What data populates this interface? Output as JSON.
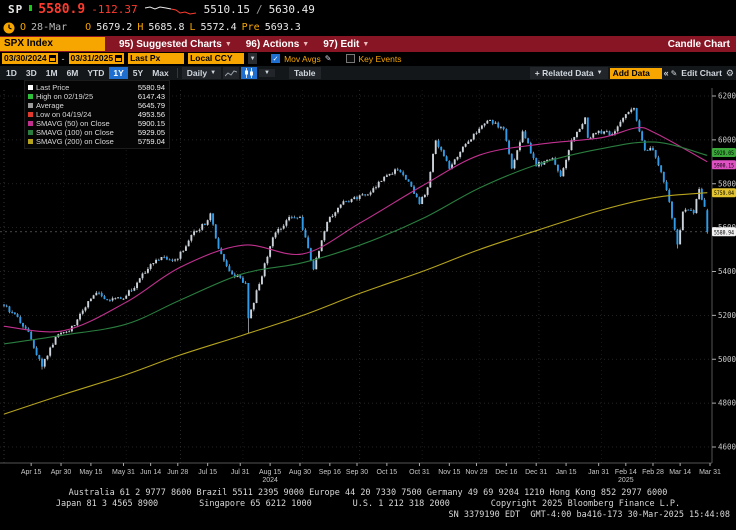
{
  "header": {
    "ticker": "SP",
    "last": "5580.9",
    "change": "-112.37",
    "range_low": "5510.15",
    "range_sep": "/",
    "range_high": "5630.49",
    "sparkline": {
      "white": [
        [
          1,
          4
        ],
        [
          6,
          3
        ],
        [
          11,
          5
        ],
        [
          16,
          3
        ],
        [
          22,
          4
        ],
        [
          27,
          5
        ]
      ],
      "red": [
        [
          27,
          5
        ],
        [
          32,
          6
        ],
        [
          36,
          9
        ],
        [
          41,
          8
        ],
        [
          46,
          10
        ],
        [
          52,
          9
        ]
      ]
    },
    "session": {
      "flag": "O",
      "date": "28-Mar",
      "o_label": "O",
      "o": "5679.2",
      "h_label": "H",
      "h": "5685.8",
      "l_label": "L",
      "l": "5572.4",
      "pre_label": "Pre",
      "pre": "5693.3"
    }
  },
  "menubar": {
    "security": "SPX Index",
    "items": [
      {
        "label": "95) Suggested Charts"
      },
      {
        "label": "96) Actions"
      },
      {
        "label": "97) Edit"
      }
    ],
    "right_label": "Candle Chart"
  },
  "controls": {
    "date_from": "03/30/2024",
    "date_to": "03/31/2025",
    "price_field": "Last Px",
    "currency": "Local CCY",
    "mov_avgs_label": "Mov Avgs",
    "key_events_label": "Key Events"
  },
  "toolbar": {
    "periods": [
      "1D",
      "3D",
      "1M",
      "6M",
      "YTD",
      "1Y",
      "5Y",
      "Max"
    ],
    "active_period": "1Y",
    "frequency": "Daily",
    "table_label": "Table",
    "related_data_label": "+ Related Data",
    "add_data_value": "Add Data",
    "collapse_label": "«",
    "edit_chart_label": "Edit Chart"
  },
  "legend": {
    "rows": [
      {
        "marker": "#ffffff",
        "label": "Last Price",
        "value": "5580.94"
      },
      {
        "marker": "#2fbf3a",
        "label": "High on 02/19/25",
        "value": "6147.43"
      },
      {
        "marker": "#9a9a9a",
        "label": "Average",
        "value": "5645.79"
      },
      {
        "marker": "#e03a2f",
        "label": "Low on 04/19/24",
        "value": "4953.56"
      },
      {
        "marker": "#c0318f",
        "label": "SMAVG (50)  on Close",
        "value": "5900.15"
      },
      {
        "marker": "#2a7d3f",
        "label": "SMAVG (100)  on Close",
        "value": "5929.05"
      },
      {
        "marker": "#b5a31e",
        "label": "SMAVG (200)  on Close",
        "value": "5759.04"
      }
    ]
  },
  "colors": {
    "up_candle": "#ccd3da",
    "down_candle": "#2f9ceb",
    "wick": "#bfc6cd",
    "sma50": "#c0318f",
    "sma100": "#2a7d3f",
    "sma200": "#b5a31e",
    "sma50_tag": "#e052c4",
    "sma100_tag": "#3aa93a",
    "sma200_tag": "#e3c42e",
    "last_tag": "#f2f2f2",
    "amber": "#f7a600",
    "blue": "#1f6fd0",
    "bar_red": "#871523",
    "down_red": "#ff3b2f",
    "grid": "#333333",
    "axis_text": "#c8c8c8"
  },
  "chart_data": {
    "type": "candlestick",
    "security": "SPX Index",
    "period": "1Y",
    "frequency": "Daily",
    "ylim": [
      4600,
      6200
    ],
    "y_ticks": [
      6200,
      6000,
      5800,
      5600,
      5400,
      5200,
      5000,
      4800,
      4600
    ],
    "x_ticks": [
      {
        "label": "Apr 15",
        "date": "2024-04-15"
      },
      {
        "label": "Apr 30",
        "date": "2024-04-30"
      },
      {
        "label": "May 15",
        "date": "2024-05-15"
      },
      {
        "label": "May 31",
        "date": "2024-05-31"
      },
      {
        "label": "Jun 14",
        "date": "2024-06-14"
      },
      {
        "label": "Jun 28",
        "date": "2024-06-28"
      },
      {
        "label": "Jul 15",
        "date": "2024-07-15"
      },
      {
        "label": "Jul 31",
        "date": "2024-07-31"
      },
      {
        "label": "Aug 15",
        "date": "2024-08-15",
        "year": "2024"
      },
      {
        "label": "Aug 30",
        "date": "2024-08-30"
      },
      {
        "label": "Sep 16",
        "date": "2024-09-16"
      },
      {
        "label": "Sep 30",
        "date": "2024-09-30"
      },
      {
        "label": "Oct 15",
        "date": "2024-10-15"
      },
      {
        "label": "Oct 31",
        "date": "2024-10-31"
      },
      {
        "label": "Nov 15",
        "date": "2024-11-15"
      },
      {
        "label": "Nov 29",
        "date": "2024-11-29"
      },
      {
        "label": "Dec 16",
        "date": "2024-12-16"
      },
      {
        "label": "Dec 31",
        "date": "2024-12-31"
      },
      {
        "label": "Jan 15",
        "date": "2025-01-15"
      },
      {
        "label": "Jan 31",
        "date": "2025-01-31"
      },
      {
        "label": "Feb 14",
        "date": "2025-02-14",
        "year": "2025"
      },
      {
        "label": "Feb 28",
        "date": "2025-02-28"
      },
      {
        "label": "Mar 14",
        "date": "2025-03-14"
      },
      {
        "label": "Mar 31",
        "date": "2025-03-31"
      }
    ],
    "key_points": {
      "last_price": 5580.94,
      "high": {
        "date": "2025-02-19",
        "value": 6147.43
      },
      "low": {
        "date": "2024-04-19",
        "value": 4953.56
      },
      "average": 5645.79
    },
    "last_candle": {
      "date": "2025-03-28",
      "open": 5679.2,
      "high": 5685.8,
      "low": 5572.4,
      "close": 5580.94
    },
    "forced_extremes": [
      {
        "date": "2024-04-19",
        "low": 4953.56
      },
      {
        "date": "2024-08-05",
        "low": 5119.26
      },
      {
        "date": "2025-02-19",
        "high": 6147.43
      },
      {
        "date": "2025-03-13",
        "low": 5504.65
      }
    ],
    "price_anchors": [
      [
        "2024-04-01",
        5244
      ],
      [
        "2024-04-05",
        5204
      ],
      [
        "2024-04-12",
        5123
      ],
      [
        "2024-04-19",
        4967
      ],
      [
        "2024-04-26",
        5100
      ],
      [
        "2024-05-03",
        5128
      ],
      [
        "2024-05-10",
        5223
      ],
      [
        "2024-05-17",
        5303
      ],
      [
        "2024-05-23",
        5268
      ],
      [
        "2024-05-31",
        5278
      ],
      [
        "2024-06-07",
        5347
      ],
      [
        "2024-06-14",
        5432
      ],
      [
        "2024-06-21",
        5465
      ],
      [
        "2024-06-28",
        5460
      ],
      [
        "2024-07-05",
        5567
      ],
      [
        "2024-07-12",
        5615
      ],
      [
        "2024-07-16",
        5667
      ],
      [
        "2024-07-19",
        5505
      ],
      [
        "2024-07-25",
        5399
      ],
      [
        "2024-08-02",
        5346
      ],
      [
        "2024-08-05",
        5186
      ],
      [
        "2024-08-09",
        5344
      ],
      [
        "2024-08-16",
        5554
      ],
      [
        "2024-08-23",
        5635
      ],
      [
        "2024-08-30",
        5648
      ],
      [
        "2024-09-06",
        5408
      ],
      [
        "2024-09-13",
        5626
      ],
      [
        "2024-09-20",
        5703
      ],
      [
        "2024-09-27",
        5738
      ],
      [
        "2024-10-04",
        5751
      ],
      [
        "2024-10-11",
        5815
      ],
      [
        "2024-10-18",
        5865
      ],
      [
        "2024-10-25",
        5808
      ],
      [
        "2024-10-31",
        5705
      ],
      [
        "2024-11-05",
        5783
      ],
      [
        "2024-11-08",
        5996
      ],
      [
        "2024-11-15",
        5871
      ],
      [
        "2024-11-22",
        5969
      ],
      [
        "2024-11-29",
        6032
      ],
      [
        "2024-12-06",
        6090
      ],
      [
        "2024-12-13",
        6051
      ],
      [
        "2024-12-18",
        5872
      ],
      [
        "2024-12-24",
        6040
      ],
      [
        "2024-12-31",
        5882
      ],
      [
        "2025-01-08",
        5918
      ],
      [
        "2025-01-13",
        5836
      ],
      [
        "2025-01-17",
        5997
      ],
      [
        "2025-01-24",
        6101
      ],
      [
        "2025-01-27",
        6012
      ],
      [
        "2025-01-31",
        6041
      ],
      [
        "2025-02-07",
        6026
      ],
      [
        "2025-02-14",
        6115
      ],
      [
        "2025-02-19",
        6144
      ],
      [
        "2025-02-25",
        5955
      ],
      [
        "2025-02-28",
        5955
      ],
      [
        "2025-03-07",
        5770
      ],
      [
        "2025-03-13",
        5521
      ],
      [
        "2025-03-17",
        5675
      ],
      [
        "2025-03-21",
        5668
      ],
      [
        "2025-03-25",
        5777
      ],
      [
        "2025-03-27",
        5693
      ],
      [
        "2025-03-28",
        5581
      ]
    ],
    "moving_averages": [
      {
        "name": "SMAVG (50) on Close",
        "color_key": "sma50",
        "last_value": 5900.15,
        "anchors": [
          [
            "2024-04-01",
            5150
          ],
          [
            "2024-05-01",
            5130
          ],
          [
            "2024-06-01",
            5260
          ],
          [
            "2024-07-01",
            5420
          ],
          [
            "2024-08-01",
            5520
          ],
          [
            "2024-09-01",
            5480
          ],
          [
            "2024-10-01",
            5620
          ],
          [
            "2024-11-01",
            5790
          ],
          [
            "2024-12-01",
            5930
          ],
          [
            "2025-01-01",
            5980
          ],
          [
            "2025-02-01",
            6010
          ],
          [
            "2025-02-20",
            6055
          ],
          [
            "2025-03-01",
            6030
          ],
          [
            "2025-03-28",
            5900.15
          ]
        ]
      },
      {
        "name": "SMAVG (100) on Close",
        "color_key": "sma100",
        "last_value": 5929.05,
        "anchors": [
          [
            "2024-04-01",
            5070
          ],
          [
            "2024-05-01",
            5110
          ],
          [
            "2024-06-01",
            5160
          ],
          [
            "2024-07-01",
            5270
          ],
          [
            "2024-08-01",
            5390
          ],
          [
            "2024-09-01",
            5440
          ],
          [
            "2024-10-01",
            5520
          ],
          [
            "2024-11-01",
            5640
          ],
          [
            "2024-12-01",
            5780
          ],
          [
            "2025-01-01",
            5890
          ],
          [
            "2025-02-01",
            5960
          ],
          [
            "2025-03-01",
            5990
          ],
          [
            "2025-03-28",
            5929.05
          ]
        ]
      },
      {
        "name": "SMAVG (200) on Close",
        "color_key": "sma200",
        "last_value": 5759.04,
        "anchors": [
          [
            "2024-04-01",
            4750
          ],
          [
            "2024-05-01",
            4840
          ],
          [
            "2024-06-01",
            4930
          ],
          [
            "2024-07-01",
            5020
          ],
          [
            "2024-08-01",
            5110
          ],
          [
            "2024-09-01",
            5200
          ],
          [
            "2024-10-01",
            5300
          ],
          [
            "2024-11-01",
            5400
          ],
          [
            "2024-12-01",
            5500
          ],
          [
            "2025-01-01",
            5590
          ],
          [
            "2025-02-01",
            5680
          ],
          [
            "2025-03-01",
            5738
          ],
          [
            "2025-03-28",
            5759.04
          ]
        ]
      }
    ],
    "price_tags": [
      {
        "value": "5929.05",
        "price": 5929.05,
        "color_key": "sma100_tag",
        "nudge": -3
      },
      {
        "value": "5900.15",
        "price": 5900.15,
        "color_key": "sma50_tag",
        "nudge": 3
      },
      {
        "value": "5759.04",
        "price": 5759.04,
        "color_key": "sma200_tag",
        "nudge": 0
      },
      {
        "value": "5580.94",
        "price": 5580.94,
        "color_key": "last_tag",
        "nudge": 0
      }
    ]
  },
  "footer": {
    "line1": "Australia 61 2 9777 8600 Brazil 5511 2395 9000 Europe 44 20 7330 7500 Germany 49 69 9204 1210 Hong Kong 852 2977 6000",
    "line2": "Japan 81 3 4565 8900        Singapore 65 6212 1000        U.S. 1 212 318 2000        Copyright 2025 Bloomberg Finance L.P.",
    "line3": "SN 3379190 EDT  GMT-4:00 ba416-173 30-Mar-2025 15:44:08"
  }
}
